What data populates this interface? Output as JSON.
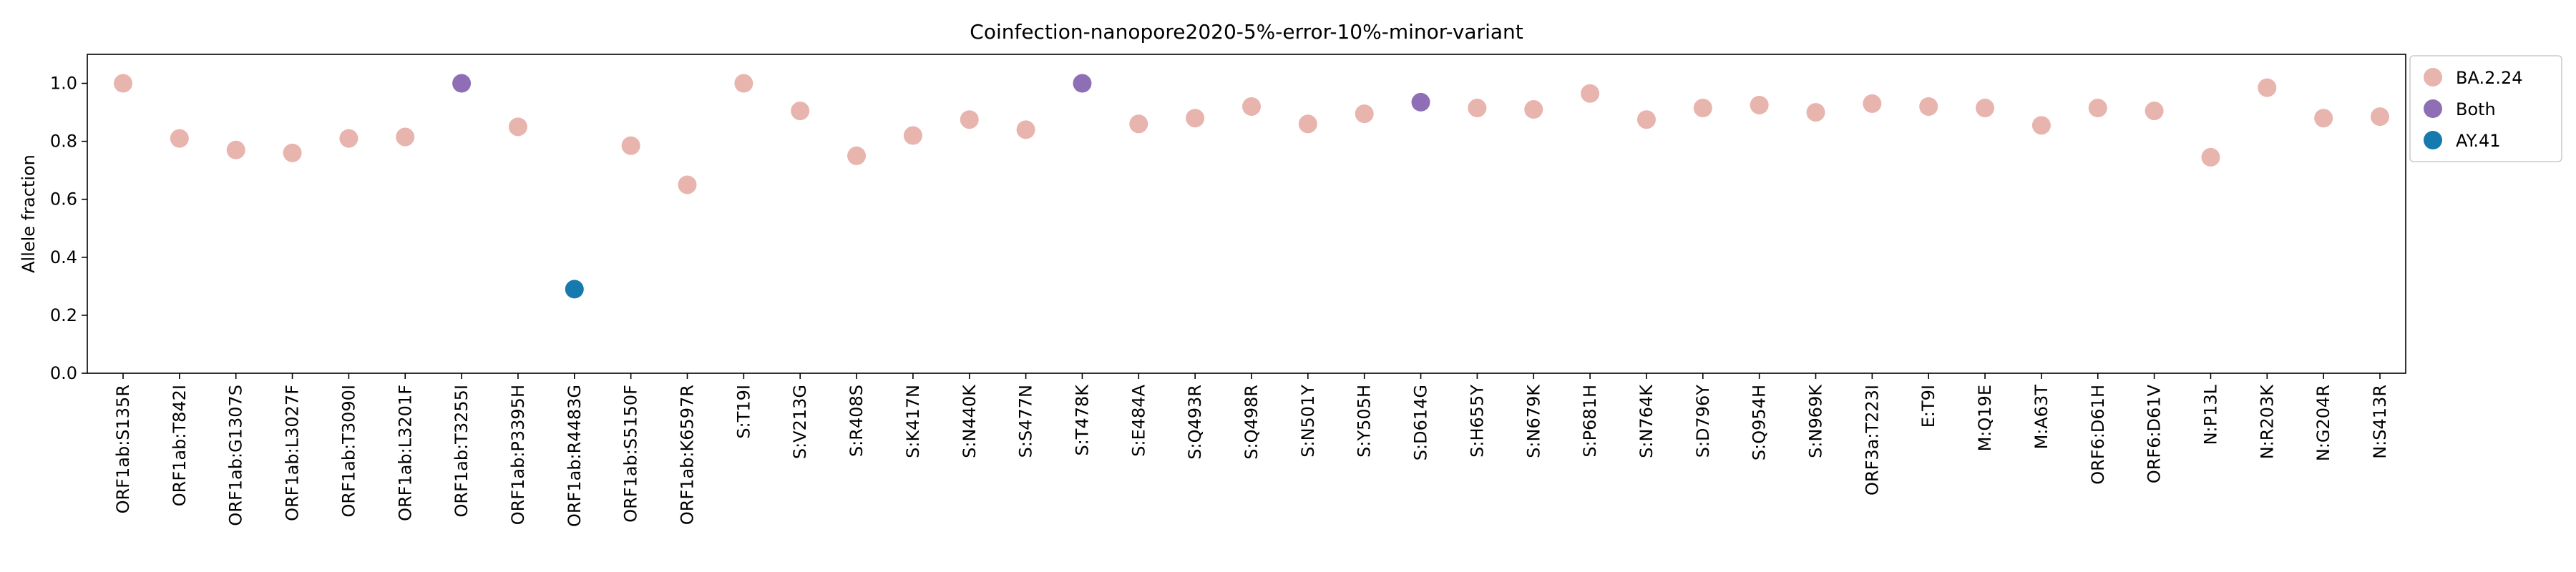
{
  "chart_data": {
    "type": "scatter",
    "title": "Coinfection-nanopore2020-5%-error-10%-minor-variant",
    "xlabel": "",
    "ylabel": "Allele fraction",
    "ylim": [
      0,
      1.1
    ],
    "yticks": [
      "0.0",
      "0.2",
      "0.4",
      "0.6",
      "0.8",
      "1.0"
    ],
    "grid": false,
    "legend_position": "right, outside plot",
    "series": [
      {
        "name": "BA.2.24",
        "color": "#e8b4ae"
      },
      {
        "name": "Both",
        "color": "#8e6fb5"
      },
      {
        "name": "AY.41",
        "color": "#167aae"
      }
    ],
    "points": [
      {
        "x": "ORF1ab:S135R",
        "y": 1.0,
        "series": "BA.2.24"
      },
      {
        "x": "ORF1ab:T842I",
        "y": 0.81,
        "series": "BA.2.24"
      },
      {
        "x": "ORF1ab:G1307S",
        "y": 0.77,
        "series": "BA.2.24"
      },
      {
        "x": "ORF1ab:L3027F",
        "y": 0.76,
        "series": "BA.2.24"
      },
      {
        "x": "ORF1ab:T3090I",
        "y": 0.81,
        "series": "BA.2.24"
      },
      {
        "x": "ORF1ab:L3201F",
        "y": 0.815,
        "series": "BA.2.24"
      },
      {
        "x": "ORF1ab:T3255I",
        "y": 1.0,
        "series": "Both"
      },
      {
        "x": "ORF1ab:P3395H",
        "y": 0.85,
        "series": "BA.2.24"
      },
      {
        "x": "ORF1ab:R4483G",
        "y": 0.29,
        "series": "AY.41"
      },
      {
        "x": "ORF1ab:S5150F",
        "y": 0.785,
        "series": "BA.2.24"
      },
      {
        "x": "ORF1ab:K6597R",
        "y": 0.65,
        "series": "BA.2.24"
      },
      {
        "x": "S:T19I",
        "y": 1.0,
        "series": "BA.2.24"
      },
      {
        "x": "S:V213G",
        "y": 0.905,
        "series": "BA.2.24"
      },
      {
        "x": "S:R408S",
        "y": 0.75,
        "series": "BA.2.24"
      },
      {
        "x": "S:K417N",
        "y": 0.82,
        "series": "BA.2.24"
      },
      {
        "x": "S:N440K",
        "y": 0.875,
        "series": "BA.2.24"
      },
      {
        "x": "S:S477N",
        "y": 0.84,
        "series": "BA.2.24"
      },
      {
        "x": "S:T478K",
        "y": 1.0,
        "series": "Both"
      },
      {
        "x": "S:E484A",
        "y": 0.86,
        "series": "BA.2.24"
      },
      {
        "x": "S:Q493R",
        "y": 0.88,
        "series": "BA.2.24"
      },
      {
        "x": "S:Q498R",
        "y": 0.92,
        "series": "BA.2.24"
      },
      {
        "x": "S:N501Y",
        "y": 0.86,
        "series": "BA.2.24"
      },
      {
        "x": "S:Y505H",
        "y": 0.895,
        "series": "BA.2.24"
      },
      {
        "x": "S:D614G",
        "y": 0.935,
        "series": "Both"
      },
      {
        "x": "S:H655Y",
        "y": 0.915,
        "series": "BA.2.24"
      },
      {
        "x": "S:N679K",
        "y": 0.91,
        "series": "BA.2.24"
      },
      {
        "x": "S:P681H",
        "y": 0.965,
        "series": "BA.2.24"
      },
      {
        "x": "S:N764K",
        "y": 0.875,
        "series": "BA.2.24"
      },
      {
        "x": "S:D796Y",
        "y": 0.915,
        "series": "BA.2.24"
      },
      {
        "x": "S:Q954H",
        "y": 0.925,
        "series": "BA.2.24"
      },
      {
        "x": "S:N969K",
        "y": 0.9,
        "series": "BA.2.24"
      },
      {
        "x": "ORF3a:T223I",
        "y": 0.93,
        "series": "BA.2.24"
      },
      {
        "x": "E:T9I",
        "y": 0.92,
        "series": "BA.2.24"
      },
      {
        "x": "M:Q19E",
        "y": 0.915,
        "series": "BA.2.24"
      },
      {
        "x": "M:A63T",
        "y": 0.855,
        "series": "BA.2.24"
      },
      {
        "x": "ORF6:D61H",
        "y": 0.915,
        "series": "BA.2.24"
      },
      {
        "x": "ORF6:D61V",
        "y": 0.905,
        "series": "BA.2.24"
      },
      {
        "x": "N:P13L",
        "y": 0.745,
        "series": "BA.2.24"
      },
      {
        "x": "N:R203K",
        "y": 0.985,
        "series": "BA.2.24"
      },
      {
        "x": "N:G204R",
        "y": 0.88,
        "series": "BA.2.24"
      },
      {
        "x": "N:S413R",
        "y": 0.885,
        "series": "BA.2.24"
      }
    ]
  }
}
